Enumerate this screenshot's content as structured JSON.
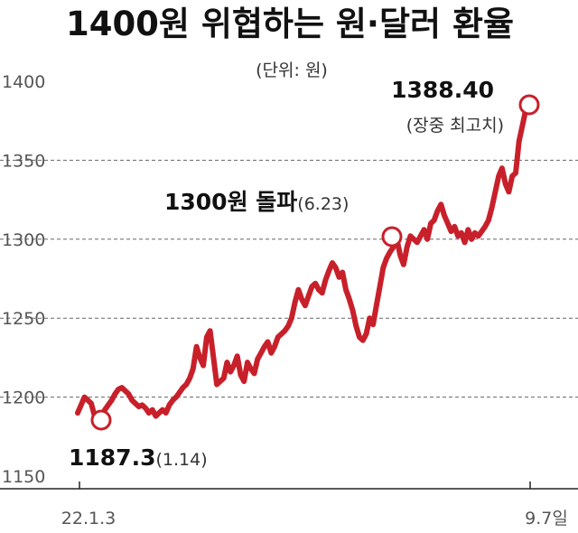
{
  "chart_data": {
    "type": "line",
    "title": "1400원 위협하는 원·달러 환율",
    "unit_note": "(단위: 원)",
    "ylim": [
      1150,
      1400
    ],
    "y_ticks": [
      "1400",
      "1350",
      "1300",
      "1250",
      "1200",
      "1150"
    ],
    "x_tick_labels": [
      "22.1.3",
      "9.7일"
    ],
    "grid": true,
    "series": [
      {
        "color": "#c8202a",
        "values": [
          1190,
          1195,
          1200,
          1198,
          1196,
          1188,
          1185,
          1187.3,
          1192,
          1195,
          1198,
          1202,
          1205,
          1206,
          1204,
          1202,
          1198,
          1196,
          1194,
          1195,
          1193,
          1190,
          1192,
          1188,
          1190,
          1192,
          1190,
          1195,
          1198,
          1200,
          1203,
          1206,
          1208,
          1212,
          1218,
          1232,
          1225,
          1220,
          1238,
          1242,
          1225,
          1208,
          1210,
          1212,
          1222,
          1216,
          1220,
          1226,
          1214,
          1210,
          1222,
          1218,
          1215,
          1224,
          1228,
          1232,
          1235,
          1228,
          1232,
          1238,
          1240,
          1242,
          1245,
          1250,
          1260,
          1268,
          1262,
          1258,
          1264,
          1270,
          1272,
          1268,
          1266,
          1274,
          1280,
          1285,
          1282,
          1276,
          1279,
          1268,
          1262,
          1255,
          1245,
          1238,
          1236,
          1240,
          1250,
          1246,
          1258,
          1270,
          1282,
          1288,
          1292,
          1295,
          1300,
          1290,
          1284,
          1295,
          1302,
          1300,
          1298,
          1302,
          1306,
          1300,
          1310,
          1312,
          1318,
          1322,
          1315,
          1310,
          1305,
          1308,
          1302,
          1304,
          1298,
          1306,
          1300,
          1304,
          1302,
          1305,
          1308,
          1312,
          1320,
          1330,
          1340,
          1345,
          1335,
          1330,
          1340,
          1342,
          1362,
          1372,
          1382,
          1388.4
        ]
      }
    ],
    "annotations": [
      {
        "label": "1388.40",
        "sub": "(장중 최고치)"
      },
      {
        "label": "1300원 돌파",
        "sub": "(6.23)"
      },
      {
        "label": "1187.3",
        "sub": "(1.14)"
      }
    ]
  }
}
